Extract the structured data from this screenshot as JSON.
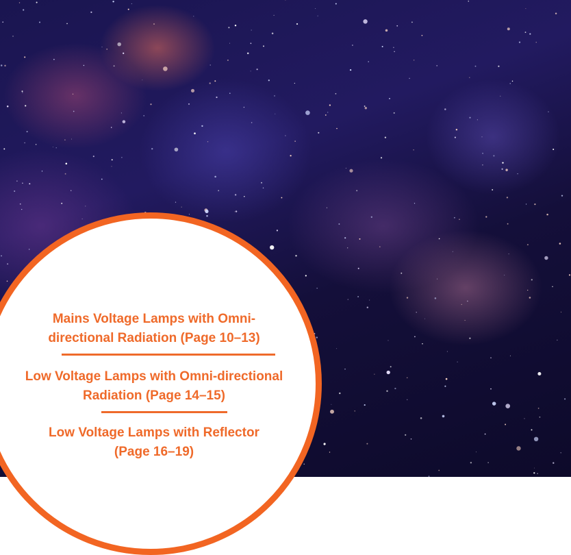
{
  "menu": {
    "items": [
      {
        "lines": [
          "Mains Voltage Lamps with Omni-",
          "directional Radiation (Page 10–13)"
        ]
      },
      {
        "lines": [
          "Low Voltage Lamps with Omni-directional",
          "Radiation (Page 14–15)"
        ]
      },
      {
        "lines": [
          "Low Voltage Lamps with Reflector",
          "(Page 16–19)"
        ]
      }
    ]
  }
}
